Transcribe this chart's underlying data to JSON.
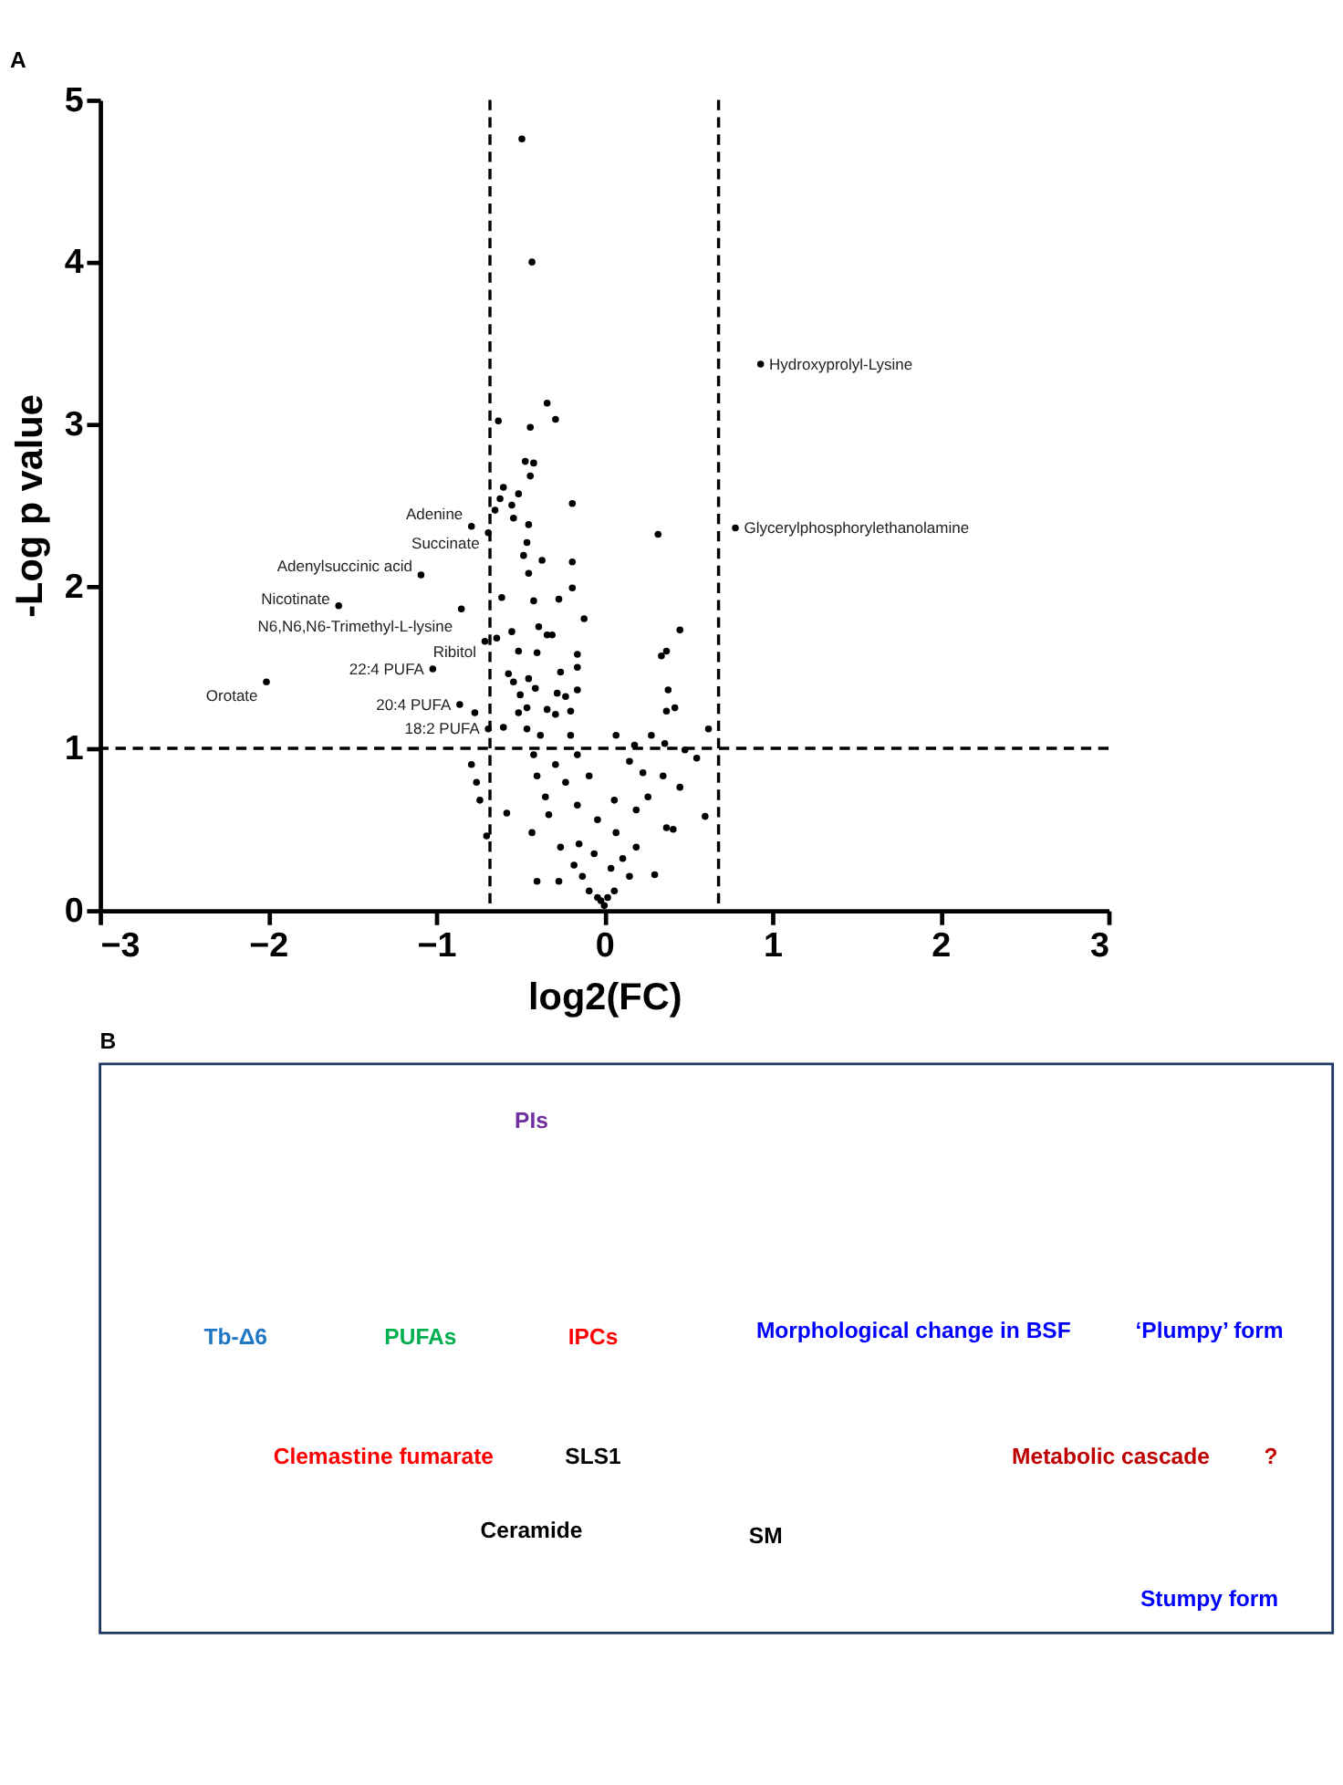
{
  "chart_data": [
    {
      "type": "scatter",
      "title": "A",
      "xlabel": "log2(FC)",
      "ylabel": "-Log p value",
      "color": "#000000",
      "marker": "circle",
      "grid": false,
      "xlim": [
        -3,
        3
      ],
      "xticks": [
        -3,
        -2,
        -1,
        0,
        1,
        2,
        3
      ],
      "ylim": [
        0,
        5
      ],
      "yticks": [
        0,
        1,
        2,
        3,
        4,
        5
      ],
      "x": [
        -0.49,
        -0.43,
        -0.34,
        -0.29,
        -0.63,
        -0.44,
        -0.47,
        -0.42,
        -0.44,
        -0.6,
        -0.62,
        -0.51,
        -0.55,
        -0.19,
        -0.65,
        -0.54,
        -0.45,
        0.32,
        -0.46,
        -0.37,
        -0.48,
        -0.19,
        -0.45,
        -0.19,
        -0.61,
        -0.42,
        -0.27,
        -0.12,
        0.45,
        -0.39,
        -0.34,
        -0.31,
        -0.55,
        -0.64,
        -0.51,
        -0.16,
        0.37,
        0.34,
        -0.4,
        -0.16,
        -0.26,
        -0.57,
        -0.45,
        -0.54,
        -0.41,
        0.38,
        -0.16,
        -0.28,
        -0.23,
        -0.5,
        0.42,
        0.37,
        -0.46,
        -0.34,
        -0.2,
        -0.51,
        -0.29,
        -0.6,
        0.62,
        0.07,
        0.28,
        -0.46,
        -0.2,
        -0.38,
        0.18,
        0.36,
        0.48,
        0.55,
        -0.79,
        -0.76,
        -0.74,
        -0.42,
        -0.29,
        -0.16,
        0.15,
        0.23,
        0.35,
        0.45,
        -0.4,
        -0.23,
        -0.09,
        -0.35,
        0.06,
        0.26,
        0.19,
        0.6,
        -0.58,
        -0.33,
        -0.16,
        -0.04,
        0.37,
        0.41,
        -0.43,
        -0.7,
        0.07,
        -0.26,
        -0.15,
        0.19,
        -0.06,
        0.11,
        0.3,
        -0.4,
        -0.27,
        -0.13,
        0.15,
        -0.09,
        0.06,
        -0.02,
        0,
        0.02,
        -0.04,
        -0.18,
        0.04,
        -0.77,
        0.93,
        0.78,
        -0.79,
        -0.69,
        -1.09,
        -1.58,
        -0.85,
        -0.71,
        -1.02,
        -2.01,
        -0.86,
        -0.69
      ],
      "values": [
        4.76,
        4.0,
        3.13,
        3.03,
        3.02,
        2.98,
        2.77,
        2.76,
        2.68,
        2.61,
        2.54,
        2.57,
        2.5,
        2.51,
        2.47,
        2.42,
        2.38,
        2.32,
        2.27,
        2.16,
        2.19,
        2.15,
        2.08,
        1.99,
        1.93,
        1.91,
        1.92,
        1.8,
        1.73,
        1.75,
        1.7,
        1.7,
        1.72,
        1.68,
        1.6,
        1.58,
        1.6,
        1.57,
        1.59,
        1.5,
        1.47,
        1.46,
        1.43,
        1.41,
        1.37,
        1.36,
        1.36,
        1.34,
        1.32,
        1.33,
        1.25,
        1.23,
        1.25,
        1.24,
        1.23,
        1.22,
        1.21,
        1.13,
        1.12,
        1.08,
        1.08,
        1.12,
        1.08,
        1.08,
        1.02,
        1.03,
        0.99,
        0.94,
        0.9,
        0.79,
        0.68,
        0.96,
        0.9,
        0.96,
        0.92,
        0.85,
        0.83,
        0.76,
        0.83,
        0.79,
        0.83,
        0.7,
        0.68,
        0.7,
        0.62,
        0.58,
        0.6,
        0.59,
        0.65,
        0.56,
        0.51,
        0.5,
        0.48,
        0.46,
        0.48,
        0.39,
        0.41,
        0.39,
        0.35,
        0.32,
        0.22,
        0.18,
        0.18,
        0.21,
        0.21,
        0.12,
        0.12,
        0.06,
        0.03,
        0.08,
        0.08,
        0.28,
        0.26,
        1.22,
        3.37,
        2.36,
        2.37,
        2.33,
        2.07,
        1.88,
        1.86,
        1.66,
        1.49,
        1.41,
        1.27,
        1.12
      ],
      "ref_lines": [
        {
          "axis": "x",
          "value": -0.68,
          "line_style": "dashed",
          "color": "#000000"
        },
        {
          "axis": "x",
          "value": 0.68,
          "line_style": "dashed",
          "color": "#000000"
        },
        {
          "axis": "y",
          "value": 1,
          "line_style": "dashed",
          "color": "#000000"
        }
      ],
      "annotations": [
        {
          "text": "Hydroxyprolyl-Lysine",
          "x": 0.93,
          "y": 3.37
        },
        {
          "text": "Glycerylphosphorylethanolamine",
          "x": 0.78,
          "y": 2.36
        },
        {
          "text": "Adenine",
          "x": -0.79,
          "y": 2.37
        },
        {
          "text": "Succinate",
          "x": -0.69,
          "y": 2.33
        },
        {
          "text": "Adenylsuccinic acid",
          "x": -1.09,
          "y": 2.07
        },
        {
          "text": "Nicotinate",
          "x": -1.58,
          "y": 1.88
        },
        {
          "text": "N6,N6,N6-Trimethyl-L-lysine",
          "x": -0.85,
          "y": 1.86
        },
        {
          "text": "Ribitol",
          "x": -0.71,
          "y": 1.66
        },
        {
          "text": "22:4 PUFA",
          "x": -1.02,
          "y": 1.49
        },
        {
          "text": "Orotate",
          "x": -2.01,
          "y": 1.41
        },
        {
          "text": "20:4 PUFA",
          "x": -0.86,
          "y": 1.27
        },
        {
          "text": "18:2 PUFA",
          "x": -0.69,
          "y": 1.12
        }
      ]
    },
    {
      "type": "other",
      "title": "B",
      "annotations": [
        "PIs",
        "Tb-Δ6",
        "PUFAs",
        "IPCs",
        "Morphological change in BSF",
        "‘Plumpy’ form",
        "Clemastine fumarate",
        "SLS1",
        "Ceramide",
        "SM",
        "Metabolic cascade",
        "?",
        "Stumpy form"
      ]
    }
  ]
}
